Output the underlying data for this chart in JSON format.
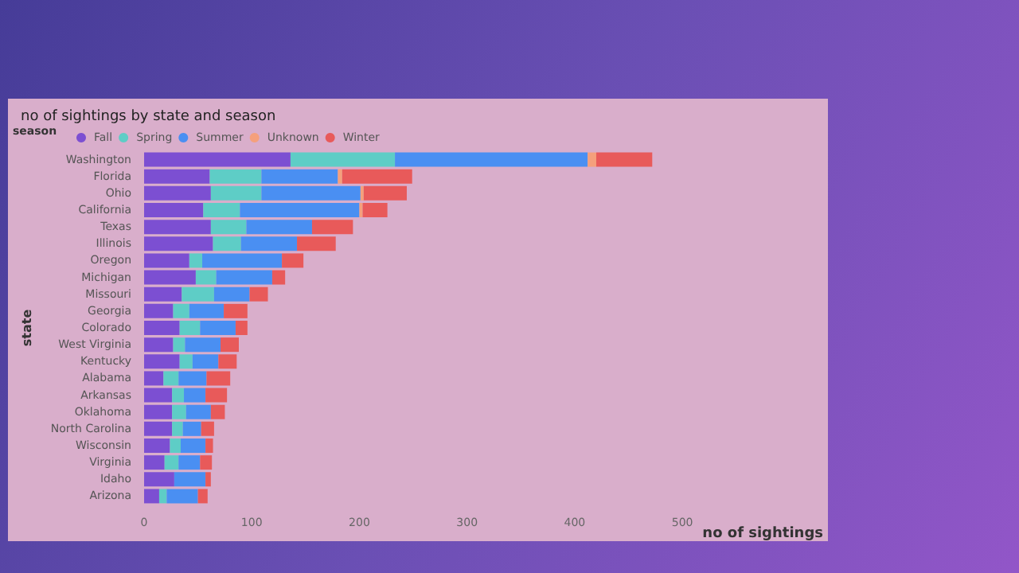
{
  "chart_data": {
    "type": "bar",
    "orientation": "horizontal",
    "stacked": true,
    "title": "no of sightings by state and season",
    "xlabel": "no of sightings",
    "ylabel": "state",
    "legend_title": "season",
    "legend": "top left",
    "categories": [
      "Washington",
      "Florida",
      "Ohio",
      "California",
      "Texas",
      "Illinois",
      "Oregon",
      "Michigan",
      "Missouri",
      "Georgia",
      "Colorado",
      "West Virginia",
      "Kentucky",
      "Alabama",
      "Arkansas",
      "Oklahoma",
      "North Carolina",
      "Wisconsin",
      "Virginia",
      "Idaho",
      "Arizona"
    ],
    "series": [
      {
        "name": "Fall",
        "color": "#7c4fd2",
        "values": [
          136,
          61,
          62,
          55,
          62,
          64,
          42,
          48,
          35,
          27,
          33,
          27,
          33,
          18,
          26,
          26,
          26,
          24,
          19,
          28,
          14
        ]
      },
      {
        "name": "Spring",
        "color": "#5ecdc6",
        "values": [
          97,
          48,
          47,
          34,
          33,
          26,
          12,
          19,
          30,
          15,
          19,
          11,
          12,
          14,
          11,
          13,
          10,
          10,
          13,
          null,
          7
        ]
      },
      {
        "name": "Summer",
        "color": "#4a8ff2",
        "values": [
          179,
          71,
          92,
          111,
          61,
          52,
          74,
          52,
          33,
          32,
          33,
          33,
          24,
          26,
          20,
          23,
          17,
          23,
          20,
          29,
          29
        ]
      },
      {
        "name": "Unknown",
        "color": "#f5a07c",
        "values": [
          8,
          4,
          3,
          3,
          null,
          null,
          null,
          null,
          null,
          null,
          null,
          null,
          null,
          null,
          null,
          null,
          null,
          null,
          null,
          null,
          null
        ]
      },
      {
        "name": "Winter",
        "color": "#e85a5a",
        "values": [
          52,
          65,
          40,
          23,
          38,
          36,
          20,
          12,
          17,
          22,
          11,
          17,
          17,
          22,
          20,
          13,
          12,
          7,
          11,
          5,
          9
        ]
      }
    ],
    "xlim": [
      0,
      500
    ],
    "xticks": [
      0,
      100,
      200,
      300,
      400,
      500
    ],
    "grid": false
  }
}
